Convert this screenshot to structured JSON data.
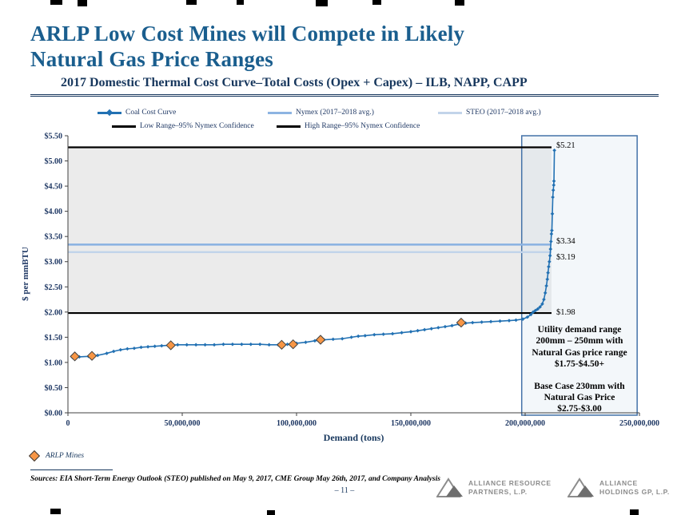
{
  "slide": {
    "title_line1": "ARLP Low Cost Mines will Compete in Likely",
    "title_line2": "Natural Gas Price Ranges",
    "subtitle": "2017 Domestic Thermal Cost Curve–Total Costs (Opex + Capex) – ILB, NAPP, CAPP",
    "page_number": "– 11 –",
    "sources": "Sources: EIA Short-Term Energy Outlook (STEO) published on May 9, 2017, CME Group May 26th, 2017, and Company Analysis"
  },
  "legend": {
    "items": [
      {
        "label": "Coal Cost Curve",
        "color": "#2271B3",
        "marker": true
      },
      {
        "label": "Nymex (2017–2018 avg.)",
        "color": "#8DB4E2",
        "marker": false
      },
      {
        "label": "STEO (2017–2018 avg.)",
        "color": "#C2D4EA",
        "marker": false
      },
      {
        "label": "Low Range–95% Nymex Confidence",
        "color": "#000000",
        "marker": false
      },
      {
        "label": "High Range–95% Nymex Confidence",
        "color": "#000000",
        "marker": false
      }
    ]
  },
  "arlp_legend": {
    "label": "ARLP Mines",
    "marker_color": "#F79646"
  },
  "annotation_box": {
    "para1": "Utility demand range 200mm – 250mm with Natural Gas price range $1.75-$4.50+",
    "para2": "Base Case 230mm with Natural Gas Price $2.75-$3.00"
  },
  "callouts": {
    "peak": "$5.21",
    "nymex": "$3.34",
    "steo": "$3.19",
    "low": "$1.98"
  },
  "logos": [
    {
      "line1": "Alliance Resource",
      "line2": "Partners, L.P."
    },
    {
      "line1": "Alliance",
      "line2": "Holdings GP, L.P."
    }
  ],
  "chart_data": {
    "type": "line",
    "title": "2017 Domestic Thermal Cost Curve–Total Costs (Opex + Capex) – ILB, NAPP, CAPP",
    "xlabel": "Demand (tons)",
    "ylabel": "$ per mmBTU",
    "xlim": [
      0,
      250000000
    ],
    "ylim": [
      0,
      5.5
    ],
    "x_ticks": [
      {
        "v": 0,
        "label": "0"
      },
      {
        "v": 50000000,
        "label": "50,000,000"
      },
      {
        "v": 100000000,
        "label": "100,000,000"
      },
      {
        "v": 150000000,
        "label": "150,000,000"
      },
      {
        "v": 200000000,
        "label": "200,000,000"
      },
      {
        "v": 250000000,
        "label": "250,000,000"
      }
    ],
    "y_ticks": [
      {
        "v": 0.0,
        "label": "$0.00"
      },
      {
        "v": 0.5,
        "label": "$0.50"
      },
      {
        "v": 1.0,
        "label": "$1.00"
      },
      {
        "v": 1.5,
        "label": "$1.50"
      },
      {
        "v": 2.0,
        "label": "$2.00"
      },
      {
        "v": 2.5,
        "label": "$2.50"
      },
      {
        "v": 3.0,
        "label": "$3.00"
      },
      {
        "v": 3.5,
        "label": "$3.50"
      },
      {
        "v": 4.0,
        "label": "$4.00"
      },
      {
        "v": 4.5,
        "label": "$4.50"
      },
      {
        "v": 5.0,
        "label": "$5.00"
      },
      {
        "v": 5.5,
        "label": "$5.50"
      }
    ],
    "band": {
      "low": 1.98,
      "high": 5.27,
      "fill": "#EBEBEB"
    },
    "hlines": [
      {
        "name": "High Range 95% Nymex Confidence",
        "value": 5.27,
        "color": "#000000",
        "width": 2.2
      },
      {
        "name": "Low Range 95% Nymex Confidence",
        "value": 1.98,
        "color": "#000000",
        "width": 2.2
      },
      {
        "name": "Nymex 2017-2018 avg",
        "value": 3.34,
        "color": "#8DB4E2",
        "width": 2.6
      },
      {
        "name": "STEO 2017-2018 avg",
        "value": 3.19,
        "color": "#C2D4EA",
        "width": 2.6
      }
    ],
    "highlight_region": {
      "x_start": 198500000,
      "x_end": 249000000
    },
    "series": [
      {
        "name": "Coal Cost Curve",
        "color": "#2271B3",
        "marker": "diamond",
        "points": [
          [
            2000000,
            1.1
          ],
          [
            5000000,
            1.11
          ],
          [
            9000000,
            1.12
          ],
          [
            13000000,
            1.14
          ],
          [
            17000000,
            1.18
          ],
          [
            20000000,
            1.22
          ],
          [
            23000000,
            1.25
          ],
          [
            26000000,
            1.27
          ],
          [
            29000000,
            1.28
          ],
          [
            32000000,
            1.3
          ],
          [
            35000000,
            1.31
          ],
          [
            38000000,
            1.32
          ],
          [
            41000000,
            1.33
          ],
          [
            44000000,
            1.34
          ],
          [
            48000000,
            1.35
          ],
          [
            52000000,
            1.35
          ],
          [
            56000000,
            1.35
          ],
          [
            60000000,
            1.35
          ],
          [
            64000000,
            1.35
          ],
          [
            68000000,
            1.36
          ],
          [
            72000000,
            1.36
          ],
          [
            76000000,
            1.36
          ],
          [
            80000000,
            1.36
          ],
          [
            84000000,
            1.36
          ],
          [
            88000000,
            1.35
          ],
          [
            92000000,
            1.35
          ],
          [
            96000000,
            1.36
          ],
          [
            100000000,
            1.38
          ],
          [
            104000000,
            1.4
          ],
          [
            108000000,
            1.43
          ],
          [
            112000000,
            1.45
          ],
          [
            116000000,
            1.46
          ],
          [
            120000000,
            1.47
          ],
          [
            124000000,
            1.5
          ],
          [
            127000000,
            1.52
          ],
          [
            130000000,
            1.53
          ],
          [
            134000000,
            1.55
          ],
          [
            138000000,
            1.56
          ],
          [
            142000000,
            1.57
          ],
          [
            146000000,
            1.59
          ],
          [
            150000000,
            1.61
          ],
          [
            153000000,
            1.63
          ],
          [
            156000000,
            1.65
          ],
          [
            159000000,
            1.67
          ],
          [
            162000000,
            1.69
          ],
          [
            165000000,
            1.71
          ],
          [
            168000000,
            1.73
          ],
          [
            171000000,
            1.76
          ],
          [
            174000000,
            1.78
          ],
          [
            177000000,
            1.79
          ],
          [
            181000000,
            1.8
          ],
          [
            185000000,
            1.81
          ],
          [
            189000000,
            1.82
          ],
          [
            193000000,
            1.83
          ],
          [
            196000000,
            1.84
          ],
          [
            199000000,
            1.86
          ],
          [
            201000000,
            1.9
          ],
          [
            202500000,
            1.95
          ],
          [
            203500000,
            2.0
          ],
          [
            204500000,
            2.03
          ],
          [
            205500000,
            2.06
          ],
          [
            206500000,
            2.1
          ],
          [
            207500000,
            2.16
          ],
          [
            208200000,
            2.25
          ],
          [
            208800000,
            2.38
          ],
          [
            209300000,
            2.52
          ],
          [
            209700000,
            2.65
          ],
          [
            210000000,
            2.78
          ],
          [
            210300000,
            2.9
          ],
          [
            210600000,
            3.0
          ],
          [
            210900000,
            3.12
          ],
          [
            211100000,
            3.25
          ],
          [
            211300000,
            3.4
          ],
          [
            211500000,
            3.55
          ],
          [
            211700000,
            3.62
          ],
          [
            211900000,
            3.95
          ],
          [
            212100000,
            4.28
          ],
          [
            212300000,
            4.42
          ],
          [
            212500000,
            4.52
          ],
          [
            212600000,
            4.6
          ],
          [
            212800000,
            5.21
          ]
        ]
      },
      {
        "name": "ARLP Mines",
        "color": "#F79646",
        "marker": "diamond",
        "points": [
          [
            3000000,
            1.12
          ],
          [
            10500000,
            1.13
          ],
          [
            45000000,
            1.34
          ],
          [
            93500000,
            1.35
          ],
          [
            98500000,
            1.36
          ],
          [
            110500000,
            1.45
          ],
          [
            172000000,
            1.79
          ]
        ]
      }
    ],
    "callout_values": [
      5.21,
      3.34,
      3.19,
      1.98
    ]
  }
}
